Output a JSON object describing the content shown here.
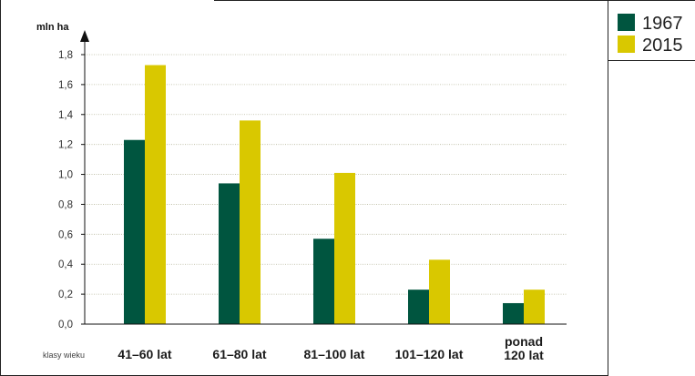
{
  "colors": {
    "1967": "#00553f",
    "2015": "#d9c800"
  },
  "chart_data": {
    "type": "bar",
    "categories": [
      "41–60 lat",
      "61–80 lat",
      "81–100 lat",
      "101–120 lat",
      "ponad\n120 lat"
    ],
    "series": [
      {
        "name": "1967",
        "values": [
          1.23,
          0.94,
          0.57,
          0.23,
          0.14
        ]
      },
      {
        "name": "2015",
        "values": [
          1.73,
          1.36,
          1.01,
          0.43,
          0.23
        ]
      }
    ],
    "ylabel": "mln ha",
    "xlabel": "klasy wieku",
    "ylim": [
      0,
      1.8
    ],
    "yticks": [
      "0,0",
      "0,2",
      "0,4",
      "0,6",
      "0,8",
      "1,0",
      "1,2",
      "1,4",
      "1,6",
      "1,8"
    ],
    "grid": true,
    "legend_position": "top-right"
  }
}
